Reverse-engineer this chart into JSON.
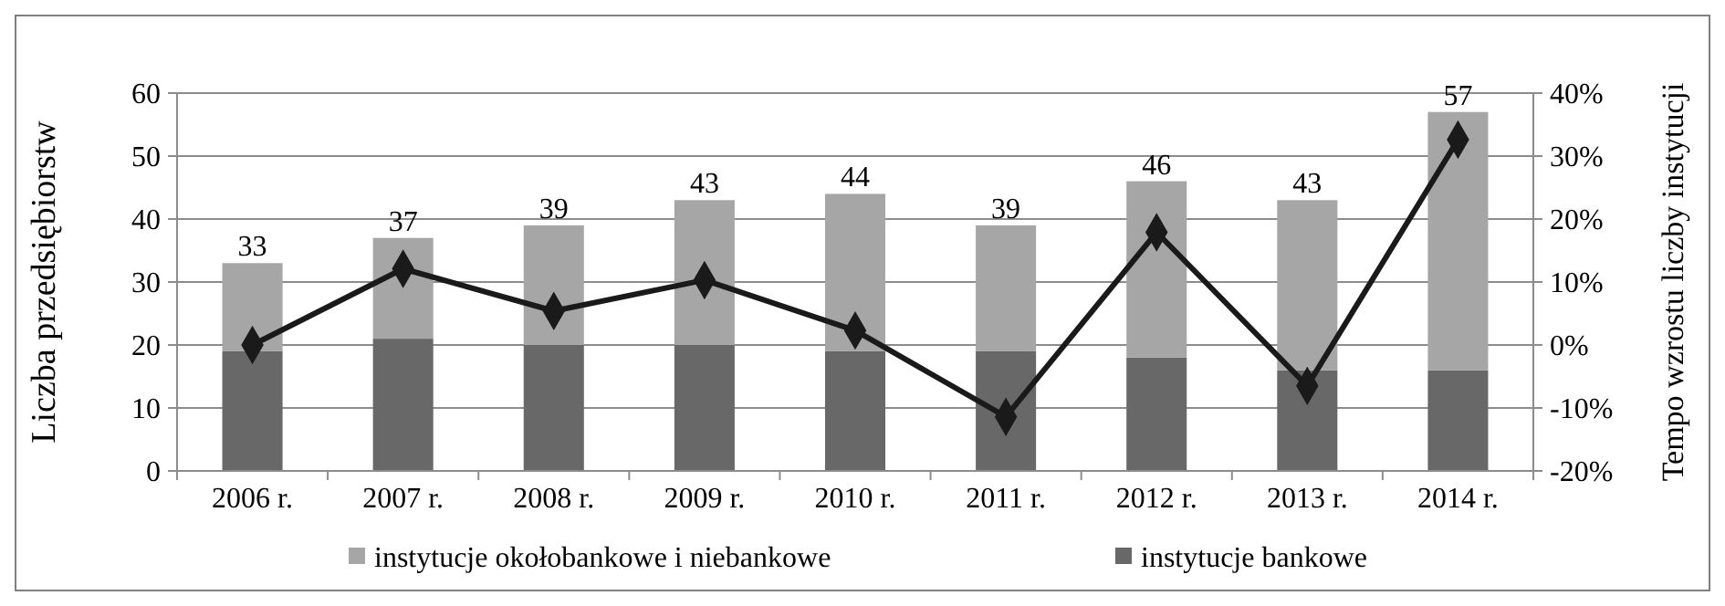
{
  "chart_data": {
    "type": "bar",
    "stacked": true,
    "ylabel": "Liczba przedsiębiorstw",
    "y2label": "Tempo wzrostu liczby instytucji",
    "categories": [
      "2006 r.",
      "2007 r.",
      "2008 r.",
      "2009 r.",
      "2010 r.",
      "2011 r.",
      "2012 r.",
      "2013 r.",
      "2014 r."
    ],
    "series": [
      {
        "name": "instytucje bankowe",
        "color": "#686868",
        "values": [
          19,
          21,
          20,
          20,
          19,
          19,
          18,
          16,
          16
        ]
      },
      {
        "name": "instytucje okołobankowe i niebankowe",
        "color": "#a6a6a6",
        "values": [
          14,
          16,
          19,
          23,
          25,
          20,
          28,
          27,
          41
        ]
      },
      {
        "type": "line",
        "axis": "y2",
        "color": "#1a1a1a",
        "marker": "diamond",
        "values": [
          0,
          12.1,
          5.4,
          10.3,
          2.3,
          -11.4,
          17.9,
          -6.5,
          32.6
        ]
      }
    ],
    "totals": [
      "33",
      "37",
      "39",
      "43",
      "44",
      "39",
      "46",
      "43",
      "57"
    ],
    "ylim": [
      0,
      60
    ],
    "yticks": [
      0,
      10,
      20,
      30,
      40,
      50,
      60
    ],
    "y2lim": [
      -20,
      40
    ],
    "y2ticks": [
      {
        "value": -20,
        "label": "-20%"
      },
      {
        "value": -10,
        "label": "-10%"
      },
      {
        "value": 0,
        "label": "0%"
      },
      {
        "value": 10,
        "label": "10%"
      },
      {
        "value": 20,
        "label": "20%"
      },
      {
        "value": 30,
        "label": "30%"
      },
      {
        "value": 40,
        "label": "40%"
      }
    ],
    "grid": "y",
    "legend": "bottom"
  }
}
